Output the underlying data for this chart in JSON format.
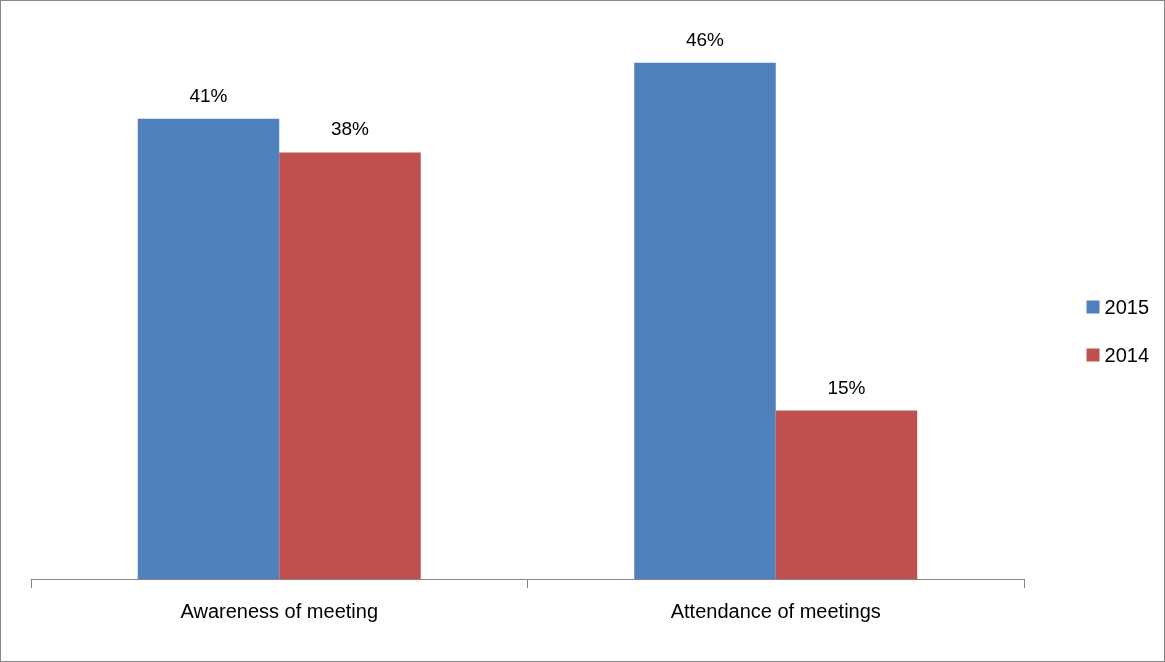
{
  "chart_data": {
    "type": "bar",
    "categories": [
      "Awareness of meeting",
      "Attendance of meetings"
    ],
    "series": [
      {
        "name": "2015",
        "color": "#4f81bd",
        "values": [
          41,
          46
        ],
        "value_labels": [
          "41%",
          "46%"
        ]
      },
      {
        "name": "2014",
        "color": "#c0504d",
        "values": [
          38,
          15
        ],
        "value_labels": [
          "38%",
          "15%"
        ]
      }
    ],
    "legend": "right"
  }
}
